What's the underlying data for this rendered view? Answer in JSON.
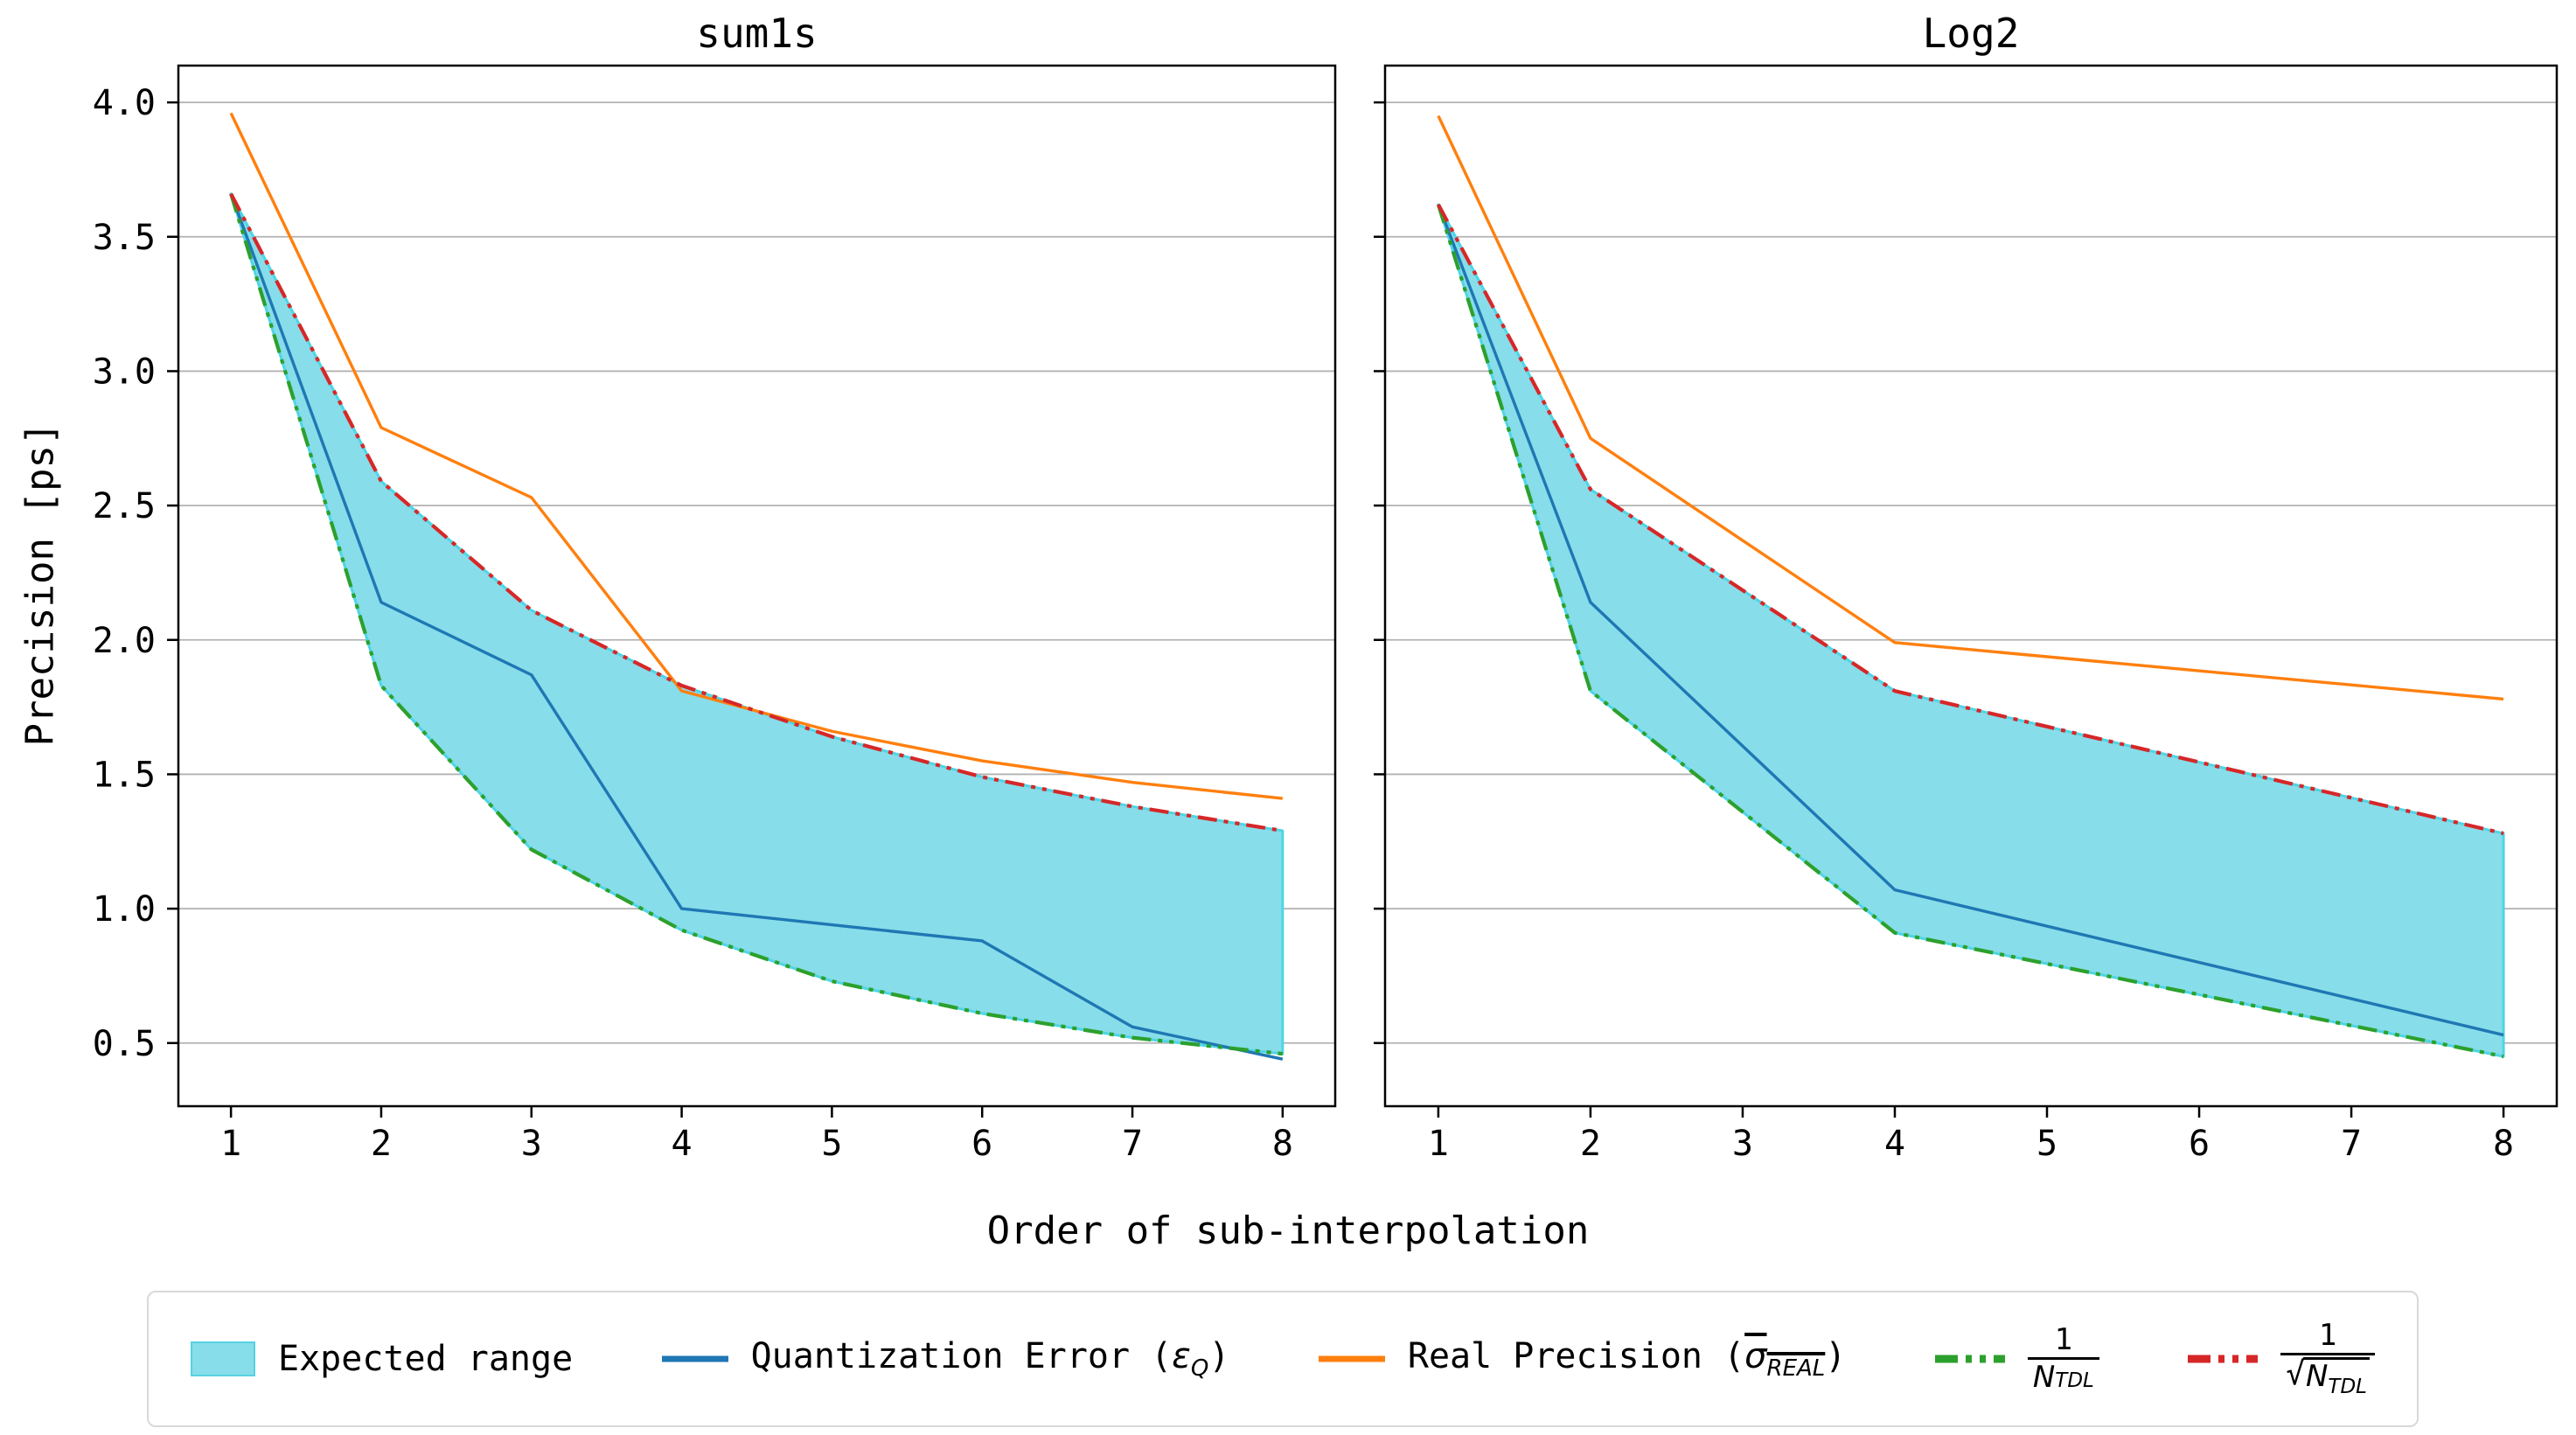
{
  "figure": {
    "xlabel": "Order of sub-interpolation",
    "ylabel": "Precision [ps]",
    "background": "#ffffff",
    "text_color": "#000000"
  },
  "axes": {
    "xlim": [
      0.65,
      8.35
    ],
    "ylim": [
      0.265,
      4.137
    ],
    "x_tick_values": [
      1,
      2,
      3,
      4,
      5,
      6,
      7,
      8
    ],
    "x_tick_labels": [
      "1",
      "2",
      "3",
      "4",
      "5",
      "6",
      "7",
      "8"
    ],
    "y_tick_values": [
      4.0,
      3.5,
      3.0,
      2.5,
      2.0,
      1.5,
      1.0,
      0.5
    ],
    "y_tick_labels": [
      "4.0",
      "3.5",
      "3.0",
      "2.5",
      "2.0",
      "1.5",
      "1.0",
      "0.5"
    ],
    "grid": "horizontal",
    "grid_color": "#b2b2b2",
    "spine_color": "#000000"
  },
  "colors": {
    "quantization_error": "#1f77b4",
    "real_precision": "#ff7f0e",
    "inv_ntdl": "#2ca02c",
    "inv_sqrt_ntdl": "#d62728",
    "expected_range_fill": "#87dde9",
    "expected_range_edge": "#4ed5e5"
  },
  "chart_data": [
    {
      "type": "line",
      "title": "sum1s",
      "x": [
        1,
        2,
        3,
        4,
        5,
        6,
        7,
        8
      ],
      "series": [
        {
          "key": "quantization_error",
          "name": "Quantization Error (εQ)",
          "color": "#1f77b4",
          "dash": "solid",
          "values": [
            3.66,
            2.14,
            1.87,
            1.0,
            0.94,
            0.88,
            0.56,
            0.44
          ]
        },
        {
          "key": "real_precision",
          "name": "Real Precision (σREAL)",
          "color": "#ff7f0e",
          "dash": "solid",
          "values": [
            3.96,
            2.79,
            2.53,
            1.81,
            1.66,
            1.55,
            1.47,
            1.41
          ]
        },
        {
          "key": "inv_ntdl",
          "name": "1/NTDL",
          "color": "#2ca02c",
          "dash": "dashdotdot",
          "values": [
            3.66,
            1.83,
            1.22,
            0.92,
            0.73,
            0.61,
            0.52,
            0.46
          ]
        },
        {
          "key": "inv_sqrt_ntdl",
          "name": "1/√NTDL",
          "color": "#d62728",
          "dash": "dashdotdot",
          "values": [
            3.66,
            2.59,
            2.11,
            1.83,
            1.64,
            1.49,
            1.38,
            1.29
          ]
        }
      ],
      "band": {
        "name": "Expected range",
        "upper": "inv_sqrt_ntdl",
        "lower": "inv_ntdl",
        "fill": "#87dde9",
        "edge": "#4ed5e5"
      }
    },
    {
      "type": "line",
      "title": "Log2",
      "x": [
        1,
        2,
        4,
        8
      ],
      "series": [
        {
          "key": "quantization_error",
          "name": "Quantization Error (εQ)",
          "color": "#1f77b4",
          "dash": "solid",
          "values": [
            3.62,
            2.14,
            1.07,
            0.53
          ]
        },
        {
          "key": "real_precision",
          "name": "Real Precision (σREAL)",
          "color": "#ff7f0e",
          "dash": "solid",
          "values": [
            3.95,
            2.75,
            1.99,
            1.78
          ]
        },
        {
          "key": "inv_ntdl",
          "name": "1/NTDL",
          "color": "#2ca02c",
          "dash": "dashdotdot",
          "values": [
            3.62,
            1.81,
            0.91,
            0.45
          ]
        },
        {
          "key": "inv_sqrt_ntdl",
          "name": "1/√NTDL",
          "color": "#d62728",
          "dash": "dashdotdot",
          "values": [
            3.62,
            2.56,
            1.81,
            1.28
          ]
        }
      ],
      "band": {
        "name": "Expected range",
        "upper": "inv_sqrt_ntdl",
        "lower": "inv_ntdl",
        "fill": "#87dde9",
        "edge": "#4ed5e5"
      }
    }
  ],
  "legend": {
    "expected_range": "Expected range",
    "quantization": {
      "pre": "Quantization Error (",
      "symbol": "ε",
      "sub": "Q",
      "post": ")"
    },
    "real_precision": {
      "pre": "Real Precision (",
      "symbol": "σ",
      "sub": "REAL",
      "post": ")"
    },
    "inv_n": {
      "numerator": "1",
      "den_symbol": "N",
      "den_sub": "TDL"
    },
    "inv_sqrt_n": {
      "numerator": "1",
      "sqrt": "√",
      "den_symbol": "N",
      "den_sub": "TDL"
    }
  }
}
